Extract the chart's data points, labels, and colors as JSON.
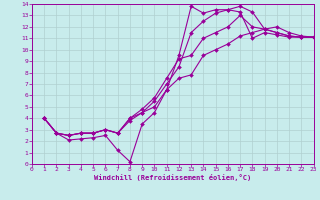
{
  "bg_color": "#c8ecec",
  "line_color": "#990099",
  "grid_color": "#b0d0d0",
  "xlim": [
    0,
    23
  ],
  "ylim": [
    0,
    14
  ],
  "xticks": [
    0,
    1,
    2,
    3,
    4,
    5,
    6,
    7,
    8,
    9,
    10,
    11,
    12,
    13,
    14,
    15,
    16,
    17,
    18,
    19,
    20,
    21,
    22,
    23
  ],
  "yticks": [
    0,
    1,
    2,
    3,
    4,
    5,
    6,
    7,
    8,
    9,
    10,
    11,
    12,
    13,
    14
  ],
  "xlabel": "Windchill (Refroidissement éolien,°C)",
  "lines": [
    {
      "x": [
        1,
        2,
        3,
        4,
        5,
        6,
        7,
        8,
        9,
        10,
        11,
        12,
        13,
        14,
        15,
        16,
        17,
        18,
        19,
        20,
        21,
        22,
        23
      ],
      "y": [
        4.0,
        2.7,
        2.1,
        2.2,
        2.3,
        2.5,
        1.2,
        0.2,
        3.5,
        4.5,
        6.5,
        9.5,
        13.8,
        13.2,
        13.5,
        13.5,
        13.3,
        11.0,
        11.5,
        11.3,
        11.1,
        11.1,
        11.1
      ]
    },
    {
      "x": [
        1,
        2,
        3,
        4,
        5,
        6,
        7,
        8,
        9,
        10,
        11,
        12,
        13,
        14,
        15,
        16,
        17,
        18,
        19,
        20,
        21,
        22,
        23
      ],
      "y": [
        4.0,
        2.7,
        2.5,
        2.7,
        2.7,
        3.0,
        2.7,
        3.8,
        4.5,
        5.5,
        7.0,
        8.5,
        11.5,
        12.5,
        13.2,
        13.5,
        13.8,
        13.3,
        11.8,
        11.5,
        11.2,
        11.1,
        11.1
      ]
    },
    {
      "x": [
        1,
        2,
        3,
        4,
        5,
        6,
        7,
        8,
        9,
        10,
        11,
        12,
        13,
        14,
        15,
        16,
        17,
        18,
        19,
        20,
        21,
        22,
        23
      ],
      "y": [
        4.0,
        2.7,
        2.5,
        2.7,
        2.7,
        3.0,
        2.7,
        4.0,
        4.8,
        5.8,
        7.5,
        9.2,
        9.5,
        11.0,
        11.5,
        12.0,
        13.0,
        12.0,
        11.8,
        11.5,
        11.2,
        11.1,
        11.1
      ]
    },
    {
      "x": [
        1,
        2,
        3,
        4,
        5,
        6,
        7,
        8,
        9,
        10,
        11,
        12,
        13,
        14,
        15,
        16,
        17,
        18,
        19,
        20,
        21,
        22,
        23
      ],
      "y": [
        4.0,
        2.7,
        2.5,
        2.7,
        2.7,
        3.0,
        2.7,
        4.0,
        4.5,
        5.0,
        6.5,
        7.5,
        7.8,
        9.5,
        10.0,
        10.5,
        11.2,
        11.5,
        11.8,
        12.0,
        11.5,
        11.2,
        11.1
      ]
    }
  ]
}
